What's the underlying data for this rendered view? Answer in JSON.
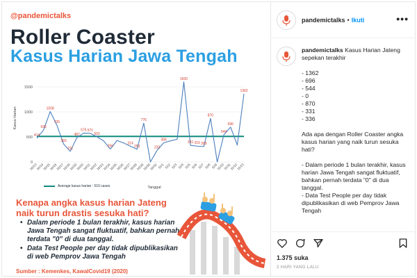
{
  "post": {
    "handle": "@pandemictalks",
    "title_line1": "Roller Coaster",
    "title_line2": "Kasus Harian Jawa Tengah",
    "legend_label": "Average  kasus harian : 510 cases",
    "question": "Kenapa angka kasus harian Jateng naik turun drastis sesuka hati?",
    "bullets": [
      "Dalam periode 1 bulan terakhir, kasus harian Jawa Tengah sangat fluktuatif, bahkan pernah terdata \"0\" di dua tanggal.",
      "Data Test People per day tidak dipublikasikan di web Pemprov Jawa Tengah"
    ],
    "source": "Sumber : Kemenkes, KawalCovid19 (2020)",
    "colors": {
      "accent_orange": "#e8563a",
      "title_blue": "#2b9fe2",
      "line_blue": "#4a7fbd",
      "avg_teal": "#0f8a7e",
      "label_red": "#d23c2e"
    }
  },
  "chart_data": {
    "type": "line",
    "ylabel": "Kasus Harian",
    "xlabel": "Tanggal",
    "ylim": [
      0,
      1750
    ],
    "yticks": [
      0,
      500,
      1000,
      1500
    ],
    "average": 510,
    "categories": [
      "10/13",
      "10/14",
      "10/15",
      "10/16",
      "10/17",
      "10/18",
      "10/19",
      "10/20",
      "10/21",
      "10/22",
      "10/23",
      "10/24",
      "10/25",
      "10/26",
      "10/27",
      "10/28",
      "10/29",
      "10/30",
      "10/31",
      "11/1",
      "11/2",
      "11/3",
      "11/4",
      "11/5",
      "11/6",
      "11/7",
      "11/8",
      "11/9",
      "11/10",
      "11/11",
      "11/12",
      "11/13"
    ],
    "values": [
      474,
      636,
      1008,
      735,
      360,
      211,
      487,
      575,
      571,
      503,
      420,
      256,
      429,
      378,
      314,
      253,
      776,
      0,
      232,
      384,
      421,
      453,
      1600,
      331,
      316,
      309,
      870,
      0,
      544,
      696,
      336,
      1362
    ],
    "data_labels": [
      "474",
      "636",
      "1008",
      "735",
      "360",
      "211",
      "487",
      "575",
      "571",
      "503",
      "",
      "256",
      "",
      "",
      "314",
      "253",
      "776",
      "",
      "232",
      "384",
      "",
      "",
      "1600",
      "331",
      "316",
      "309",
      "870",
      "",
      "544",
      "696",
      "",
      "1362"
    ]
  },
  "side": {
    "username": "pandemictalks",
    "follow_label": "Ikuti",
    "dot": "•",
    "more": "•••",
    "caption_user": "pandemictalks",
    "caption_body": " Kasus Harian Jateng sepekan terakhir\n\n- 1362\n- 696\n- 544\n- 0\n- 870\n- 331\n- 336\n\nAda apa dengan Roller Coaster angka kasus harian yang naik turun sesuka hati?\n\n- Dalam periode 1 bulan terakhir, kasus harian Jawa Tengah sangat fluktuatif, bahkan pernah terdata \"0\" di dua tanggal.\n- Data Test People per day tidak dipublikasikan di web Pemprov Jawa Tengah",
    "likes": "1.375 suka",
    "time_ago": "2 HARI YANG LALU",
    "icons": [
      "heart-icon",
      "comment-icon",
      "share-icon",
      "bookmark-icon"
    ]
  }
}
